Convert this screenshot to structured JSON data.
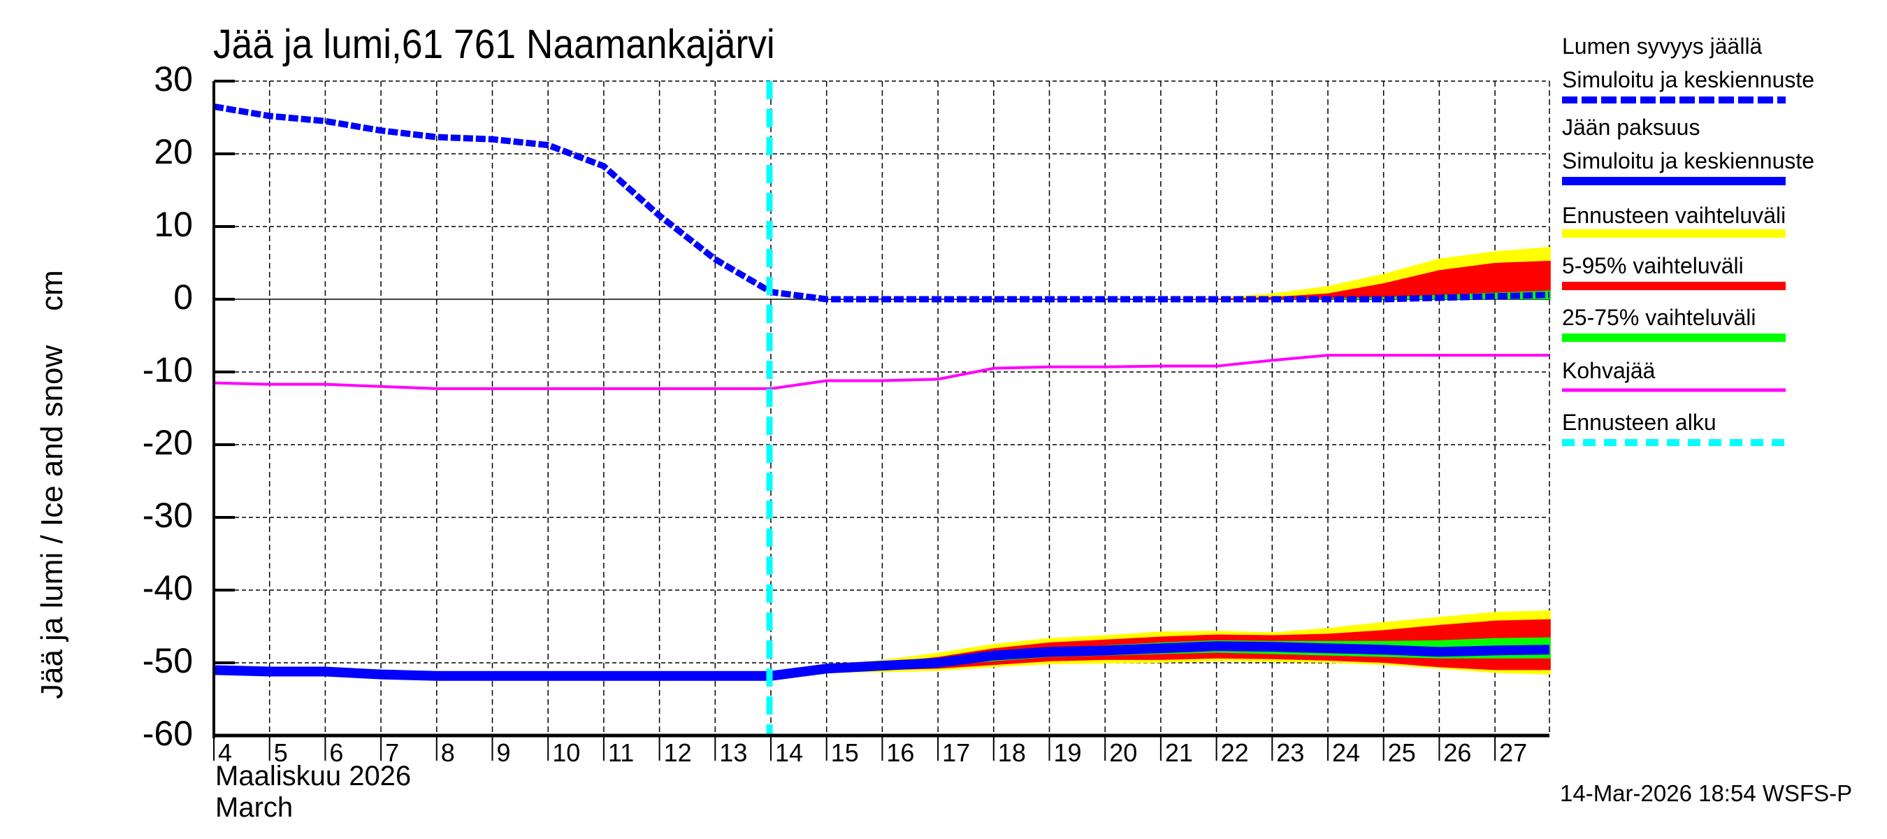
{
  "title": "Jää ja lumi,61 761 Naamankajärvi",
  "y_axis_label": "Jää ja lumi / Ice and snow    cm",
  "x_axis": {
    "month_fi": "Maaliskuu 2026",
    "month_en": "March"
  },
  "footer": "14-Mar-2026 18:54 WSFS-P",
  "legend": [
    {
      "line1": "Lumen syvyys jäällä",
      "line2": "Simuloitu ja keskiennuste",
      "color": "#0000ff",
      "style": "dashed-thick"
    },
    {
      "line1": "Jään paksuus",
      "line2": "Simuloitu ja keskiennuste",
      "color": "#0000ff",
      "style": "solid-thick"
    },
    {
      "line1": "Ennusteen vaihteluväli",
      "color": "#ffff00",
      "style": "band"
    },
    {
      "line1": "5-95% vaihteluväli",
      "color": "#ff0000",
      "style": "band"
    },
    {
      "line1": "25-75% vaihteluväli",
      "color": "#00ff00",
      "style": "band"
    },
    {
      "line1": "Kohvajää",
      "color": "#ff00ff",
      "style": "solid"
    },
    {
      "line1": "Ennusteen alku",
      "color": "#00ffff",
      "style": "dashed"
    }
  ],
  "chart_data": {
    "type": "line",
    "title": "Jää ja lumi,61 761 Naamankajärvi",
    "xlabel": "Maaliskuu 2026 / March",
    "ylabel": "Jää ja lumi / Ice and snow cm",
    "ylim": [
      -60,
      30
    ],
    "yticks": [
      30,
      20,
      10,
      0,
      -10,
      -20,
      -30,
      -40,
      -50,
      -60
    ],
    "xticks": [
      "4",
      "5",
      "6",
      "7",
      "8",
      "9",
      "10",
      "11",
      "12",
      "13",
      "14",
      "15",
      "16",
      "17",
      "18",
      "19",
      "20",
      "21",
      "22",
      "23",
      "24",
      "25",
      "26",
      "27"
    ],
    "grid": true,
    "legend_position": "right",
    "forecast_start_day": 14,
    "x": [
      4,
      5,
      6,
      7,
      8,
      9,
      10,
      11,
      12,
      13,
      14,
      15,
      16,
      17,
      18,
      19,
      20,
      21,
      22,
      23,
      24,
      25,
      26,
      27,
      28
    ],
    "series": [
      {
        "name": "Lumen syvyys jäällä (Simuloitu ja keskiennuste)",
        "color": "#0000ff",
        "values": [
          26.5,
          25.2,
          24.5,
          23.2,
          22.3,
          22.0,
          21.2,
          18.3,
          11.5,
          5.5,
          1.0,
          0,
          0,
          0,
          0,
          0,
          0,
          0,
          0,
          0,
          0,
          0,
          0.2,
          0.4,
          0.6
        ]
      },
      {
        "name": "Jään paksuus (Simuloitu ja keskiennuste)",
        "color": "#0000ff",
        "values": [
          -51.0,
          -51.2,
          -51.2,
          -51.6,
          -51.8,
          -51.8,
          -51.8,
          -51.8,
          -51.8,
          -51.8,
          -51.8,
          -50.8,
          -50.4,
          -50.0,
          -49.0,
          -48.5,
          -48.3,
          -48.0,
          -47.7,
          -47.8,
          -48.0,
          -48.2,
          -48.5,
          -48.3,
          -48.2
        ]
      },
      {
        "name": "Kohvajää",
        "color": "#ff00ff",
        "values": [
          -11.5,
          -11.7,
          -11.7,
          -12.0,
          -12.3,
          -12.3,
          -12.3,
          -12.3,
          -12.3,
          -12.3,
          -12.3,
          -11.2,
          -11.2,
          -11.0,
          -9.5,
          -9.3,
          -9.3,
          -9.2,
          -9.2,
          -8.4,
          -7.7,
          -7.7,
          -7.7,
          -7.7,
          -7.7
        ]
      }
    ],
    "bands": {
      "snow": {
        "x": [
          21,
          22,
          23,
          24,
          25,
          26,
          27,
          28
        ],
        "yellow_upper": [
          0,
          0.2,
          0.8,
          1.8,
          3.5,
          5.6,
          6.6,
          7.2
        ],
        "red_upper": [
          0,
          0.1,
          0.3,
          0.8,
          2.2,
          4.0,
          5.0,
          5.3
        ],
        "green_upper": [
          0,
          0,
          0,
          0.1,
          0.3,
          0.6,
          0.9,
          1.2
        ]
      },
      "ice": {
        "x": [
          15,
          16,
          17,
          18,
          19,
          20,
          21,
          22,
          23,
          24,
          25,
          26,
          27,
          28
        ],
        "yellow_upper": [
          -50.2,
          -49.6,
          -48.6,
          -47.4,
          -46.6,
          -46.2,
          -45.7,
          -45.6,
          -45.8,
          -45.2,
          -44.4,
          -43.7,
          -43.0,
          -42.8
        ],
        "red_upper": [
          -50.5,
          -50.0,
          -49.2,
          -48.0,
          -47.2,
          -46.8,
          -46.4,
          -46.1,
          -46.2,
          -46.0,
          -45.5,
          -44.8,
          -44.2,
          -44.0
        ],
        "green_upper": [
          -50.6,
          -50.2,
          -49.6,
          -48.6,
          -48.0,
          -47.6,
          -47.2,
          -46.9,
          -47.0,
          -47.0,
          -47.0,
          -46.9,
          -46.6,
          -46.5
        ],
        "green_lower": [
          -51.0,
          -50.7,
          -50.4,
          -49.8,
          -49.2,
          -49.0,
          -48.8,
          -48.6,
          -48.8,
          -49.0,
          -49.2,
          -49.4,
          -49.4,
          -49.4
        ],
        "red_lower": [
          -51.2,
          -51.0,
          -50.8,
          -50.3,
          -49.8,
          -49.6,
          -49.6,
          -49.4,
          -49.5,
          -49.7,
          -50.0,
          -50.6,
          -51.0,
          -51.0
        ],
        "yellow_lower": [
          -51.4,
          -51.3,
          -51.1,
          -50.6,
          -50.2,
          -50.1,
          -50.0,
          -49.8,
          -49.9,
          -50.0,
          -50.3,
          -50.8,
          -51.4,
          -51.6
        ]
      }
    }
  }
}
